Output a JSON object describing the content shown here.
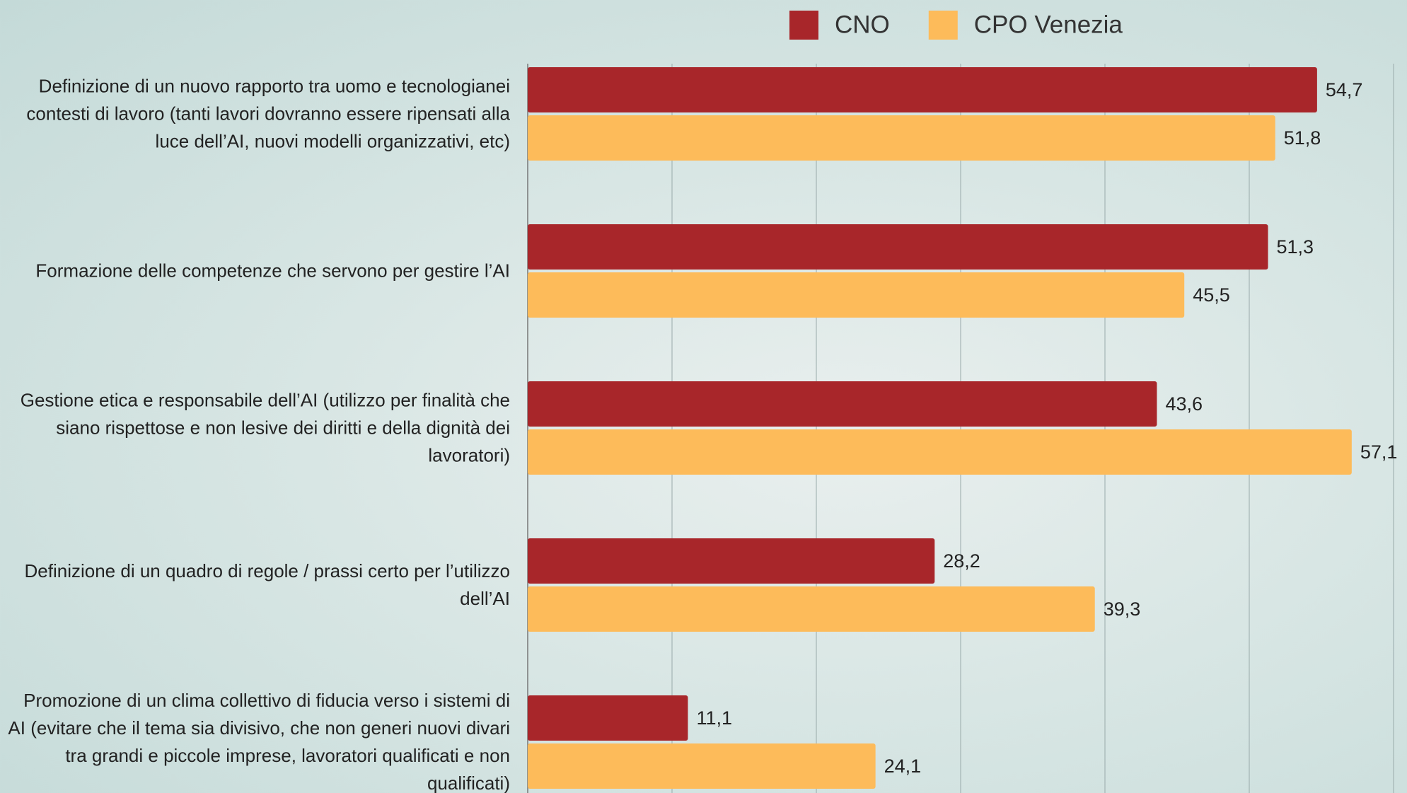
{
  "chart_data": {
    "type": "bar",
    "orientation": "horizontal",
    "categories": [
      "Definizione di un nuovo rapporto tra uomo e tecnologianei contesti di lavoro (tanti lavori dovranno essere ripensati alla luce dell’AI, nuovi modelli organizzativi, etc)",
      "Formazione delle competenze che servono per gestire l’AI",
      "Gestione etica e responsabile dell’AI (utilizzo per finalità che siano rispettose e non lesive dei diritti e della dignità dei lavoratori)",
      "Definizione di un quadro di regole / prassi certo per l’utilizzo dell’AI",
      "Promozione di un clima collettivo di fiducia verso i sistemi di AI (evitare che il tema sia divisivo, che non generi nuovi divari tra grandi e piccole imprese, lavoratori qualificati e non qualificati)"
    ],
    "series": [
      {
        "name": "CNO",
        "color": "#a8262a",
        "values": [
          54.7,
          51.3,
          43.6,
          28.2,
          11.1
        ],
        "value_labels": [
          "54,7",
          "51,3",
          "43,6",
          "28,2",
          "11,1"
        ]
      },
      {
        "name": "CPO Venezia",
        "color": "#fdbb5a",
        "values": [
          51.8,
          45.5,
          57.1,
          39.3,
          24.1
        ],
        "value_labels": [
          "51,8",
          "45,5",
          "57,1",
          "39,3",
          "24,1"
        ]
      }
    ],
    "xlim": [
      0,
      60
    ],
    "xticks": [
      0,
      10,
      20,
      30,
      40,
      50,
      60
    ],
    "grid": true,
    "legend": "top"
  }
}
